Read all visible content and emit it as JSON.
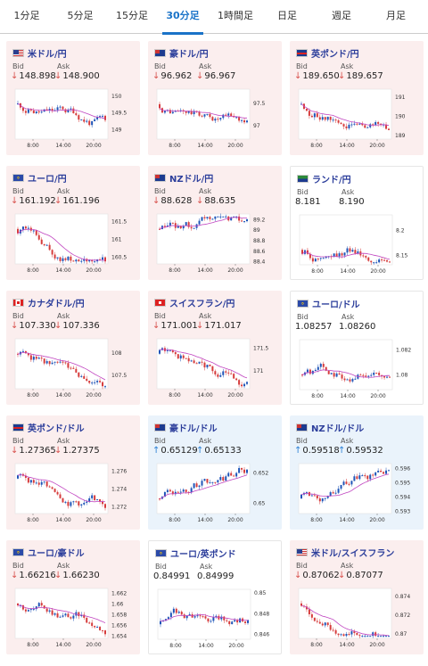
{
  "tabs": [
    {
      "label": "1分足",
      "active": false
    },
    {
      "label": "5分足",
      "active": false
    },
    {
      "label": "15分足",
      "active": false
    },
    {
      "label": "30分足",
      "active": true
    },
    {
      "label": "1時間足",
      "active": false
    },
    {
      "label": "日足",
      "active": false
    },
    {
      "label": "週足",
      "active": false
    },
    {
      "label": "月足",
      "active": false
    }
  ],
  "colors": {
    "accent": "#1a73c8",
    "down": "#d9534f",
    "up": "#2a7fd4",
    "title": "#2c3e9b",
    "ma_line": "#c044c0"
  },
  "labels": {
    "bid": "Bid",
    "ask": "Ask"
  },
  "cards": [
    {
      "title": "米ドル/円",
      "flag": "us",
      "bid": "148.898",
      "ask": "148.900",
      "trend": "down",
      "bg": "down",
      "chart_data": {
        "type": "candlestick",
        "x_ticks": [
          "8:00",
          "14:00",
          "20:00"
        ],
        "y_ticks": [
          "150",
          "149.5",
          "149"
        ],
        "ylim": [
          148.7,
          150.2
        ]
      }
    },
    {
      "title": "豪ドル/円",
      "flag": "au",
      "bid": "96.962",
      "ask": "96.967",
      "trend": "down",
      "bg": "down",
      "chart_data": {
        "type": "candlestick",
        "x_ticks": [
          "8:00",
          "14:00",
          "20:00"
        ],
        "y_ticks": [
          "97.5",
          "97"
        ],
        "ylim": [
          96.7,
          97.8
        ]
      }
    },
    {
      "title": "英ポンド/円",
      "flag": "gb",
      "bid": "189.650",
      "ask": "189.657",
      "trend": "down",
      "bg": "down",
      "chart_data": {
        "type": "candlestick",
        "x_ticks": [
          "8:00",
          "14:00",
          "20:00"
        ],
        "y_ticks": [
          "191",
          "190",
          "189"
        ],
        "ylim": [
          188.8,
          191.4
        ]
      }
    },
    {
      "title": "ユーロ/円",
      "flag": "eu",
      "bid": "161.192",
      "ask": "161.196",
      "trend": "down",
      "bg": "down",
      "chart_data": {
        "type": "candlestick",
        "x_ticks": [
          "8:00",
          "14:00",
          "20:00"
        ],
        "y_ticks": [
          "161.5",
          "161",
          "160.5"
        ],
        "ylim": [
          160.3,
          161.7
        ]
      }
    },
    {
      "title": "NZドル/円",
      "flag": "nz",
      "bid": "88.628",
      "ask": "88.635",
      "trend": "down",
      "bg": "down",
      "chart_data": {
        "type": "candlestick",
        "x_ticks": [
          "8:00",
          "14:00",
          "20:00"
        ],
        "y_ticks": [
          "89.2",
          "89",
          "88.8",
          "88.6",
          "88.4"
        ],
        "ylim": [
          88.35,
          89.3
        ]
      }
    },
    {
      "title": "ランド/円",
      "flag": "za",
      "bid": "8.181",
      "ask": "8.190",
      "trend": "none",
      "bg": "flat",
      "chart_data": {
        "type": "candlestick",
        "x_ticks": [
          "8:00",
          "14:00",
          "20:00"
        ],
        "y_ticks": [
          "8.2",
          "8.15"
        ],
        "ylim": [
          8.13,
          8.23
        ]
      }
    },
    {
      "title": "カナダドル/円",
      "flag": "ca",
      "bid": "107.330",
      "ask": "107.336",
      "trend": "down",
      "bg": "down",
      "chart_data": {
        "type": "candlestick",
        "x_ticks": [
          "8:00",
          "14:00",
          "20:00"
        ],
        "y_ticks": [
          "108",
          "107.5"
        ],
        "ylim": [
          107.2,
          108.3
        ]
      }
    },
    {
      "title": "スイスフラン/円",
      "flag": "ch",
      "bid": "171.001",
      "ask": "171.017",
      "trend": "down",
      "bg": "down",
      "chart_data": {
        "type": "candlestick",
        "x_ticks": [
          "8:00",
          "14:00",
          "20:00"
        ],
        "y_ticks": [
          "171.5",
          "171"
        ],
        "ylim": [
          170.6,
          171.7
        ]
      }
    },
    {
      "title": "ユーロ/ドル",
      "flag": "eu",
      "bid": "1.08257",
      "ask": "1.08260",
      "trend": "none",
      "bg": "flat",
      "chart_data": {
        "type": "candlestick",
        "x_ticks": [
          "8:00",
          "14:00",
          "20:00"
        ],
        "y_ticks": [
          "1.082",
          "1.08"
        ],
        "ylim": [
          1.0788,
          1.0828
        ]
      }
    },
    {
      "title": "英ポンド/ドル",
      "flag": "gb",
      "bid": "1.27365",
      "ask": "1.27375",
      "trend": "down",
      "bg": "down",
      "chart_data": {
        "type": "candlestick",
        "x_ticks": [
          "8:00",
          "14:00",
          "20:00"
        ],
        "y_ticks": [
          "1.276",
          "1.274",
          "1.272"
        ],
        "ylim": [
          1.2712,
          1.2768
        ]
      }
    },
    {
      "title": "豪ドル/ドル",
      "flag": "au",
      "bid": "0.65129",
      "ask": "0.65133",
      "trend": "up",
      "bg": "up",
      "chart_data": {
        "type": "candlestick",
        "x_ticks": [
          "8:00",
          "14:00",
          "20:00"
        ],
        "y_ticks": [
          "0.652",
          "0.65"
        ],
        "ylim": [
          0.6493,
          0.6526
        ]
      }
    },
    {
      "title": "NZドル/ドル",
      "flag": "nz",
      "bid": "0.59518",
      "ask": "0.59532",
      "trend": "up",
      "bg": "up",
      "chart_data": {
        "type": "candlestick",
        "x_ticks": [
          "8:00",
          "14:00",
          "20:00"
        ],
        "y_ticks": [
          "0.596",
          "0.595",
          "0.594",
          "0.593"
        ],
        "ylim": [
          0.5928,
          0.5963
        ]
      }
    },
    {
      "title": "ユーロ/豪ドル",
      "flag": "eu",
      "bid": "1.66216",
      "ask": "1.66230",
      "trend": "down",
      "bg": "down",
      "chart_data": {
        "type": "candlestick",
        "x_ticks": [
          "8:00",
          "14:00",
          "20:00"
        ],
        "y_ticks": [
          "1.662",
          "1.66",
          "1.658",
          "1.656",
          "1.654"
        ],
        "ylim": [
          1.6535,
          1.6628
        ]
      }
    },
    {
      "title": "ユーロ/英ポンド",
      "flag": "eu",
      "bid": "0.84991",
      "ask": "0.84999",
      "trend": "none",
      "bg": "flat",
      "chart_data": {
        "type": "candlestick",
        "x_ticks": [
          "8:00",
          "14:00",
          "20:00"
        ],
        "y_ticks": [
          "0.85",
          "0.848",
          "0.846"
        ],
        "ylim": [
          0.8455,
          0.8503
        ]
      }
    },
    {
      "title": "米ドル/スイスフラン",
      "flag": "us",
      "bid": "0.87062",
      "ask": "0.87077",
      "trend": "down",
      "bg": "down",
      "chart_data": {
        "type": "candlestick",
        "x_ticks": [
          "8:00",
          "14:00",
          "20:00"
        ],
        "y_ticks": [
          "0.874",
          "0.872",
          "0.87"
        ],
        "ylim": [
          0.8695,
          0.8748
        ]
      }
    }
  ]
}
